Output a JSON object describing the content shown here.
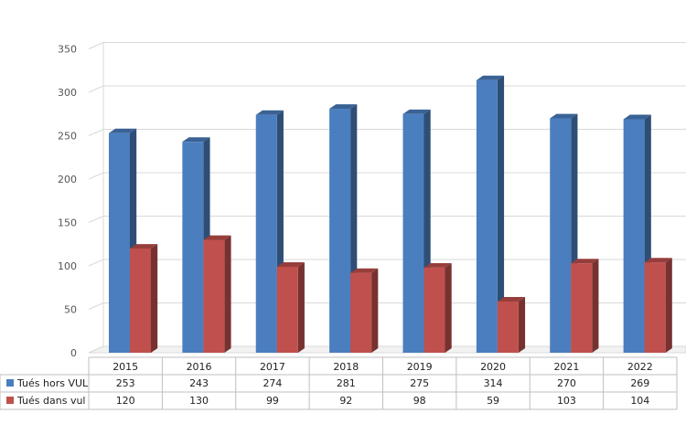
{
  "colors": {
    "series_1": "#4a7ebf",
    "series_2": "#c0504d",
    "grid": "#d9d9d9",
    "background": "#ffffff"
  },
  "chart_data": {
    "type": "bar",
    "title": "",
    "xlabel": "",
    "ylabel": "",
    "categories": [
      "2015",
      "2016",
      "2017",
      "2018",
      "2019",
      "2020",
      "2021",
      "2022"
    ],
    "series": [
      {
        "name": "Tués hors VUL",
        "values": [
          253,
          243,
          274,
          281,
          275,
          314,
          270,
          269
        ]
      },
      {
        "name": "Tués dans vul",
        "values": [
          120,
          130,
          99,
          92,
          98,
          59,
          103,
          104
        ]
      }
    ],
    "ylim": [
      0,
      350
    ],
    "yticks": [
      0,
      50,
      100,
      150,
      200,
      250,
      300,
      350
    ],
    "grid": true,
    "style": "3d-clustered-columns",
    "data_table": true
  }
}
